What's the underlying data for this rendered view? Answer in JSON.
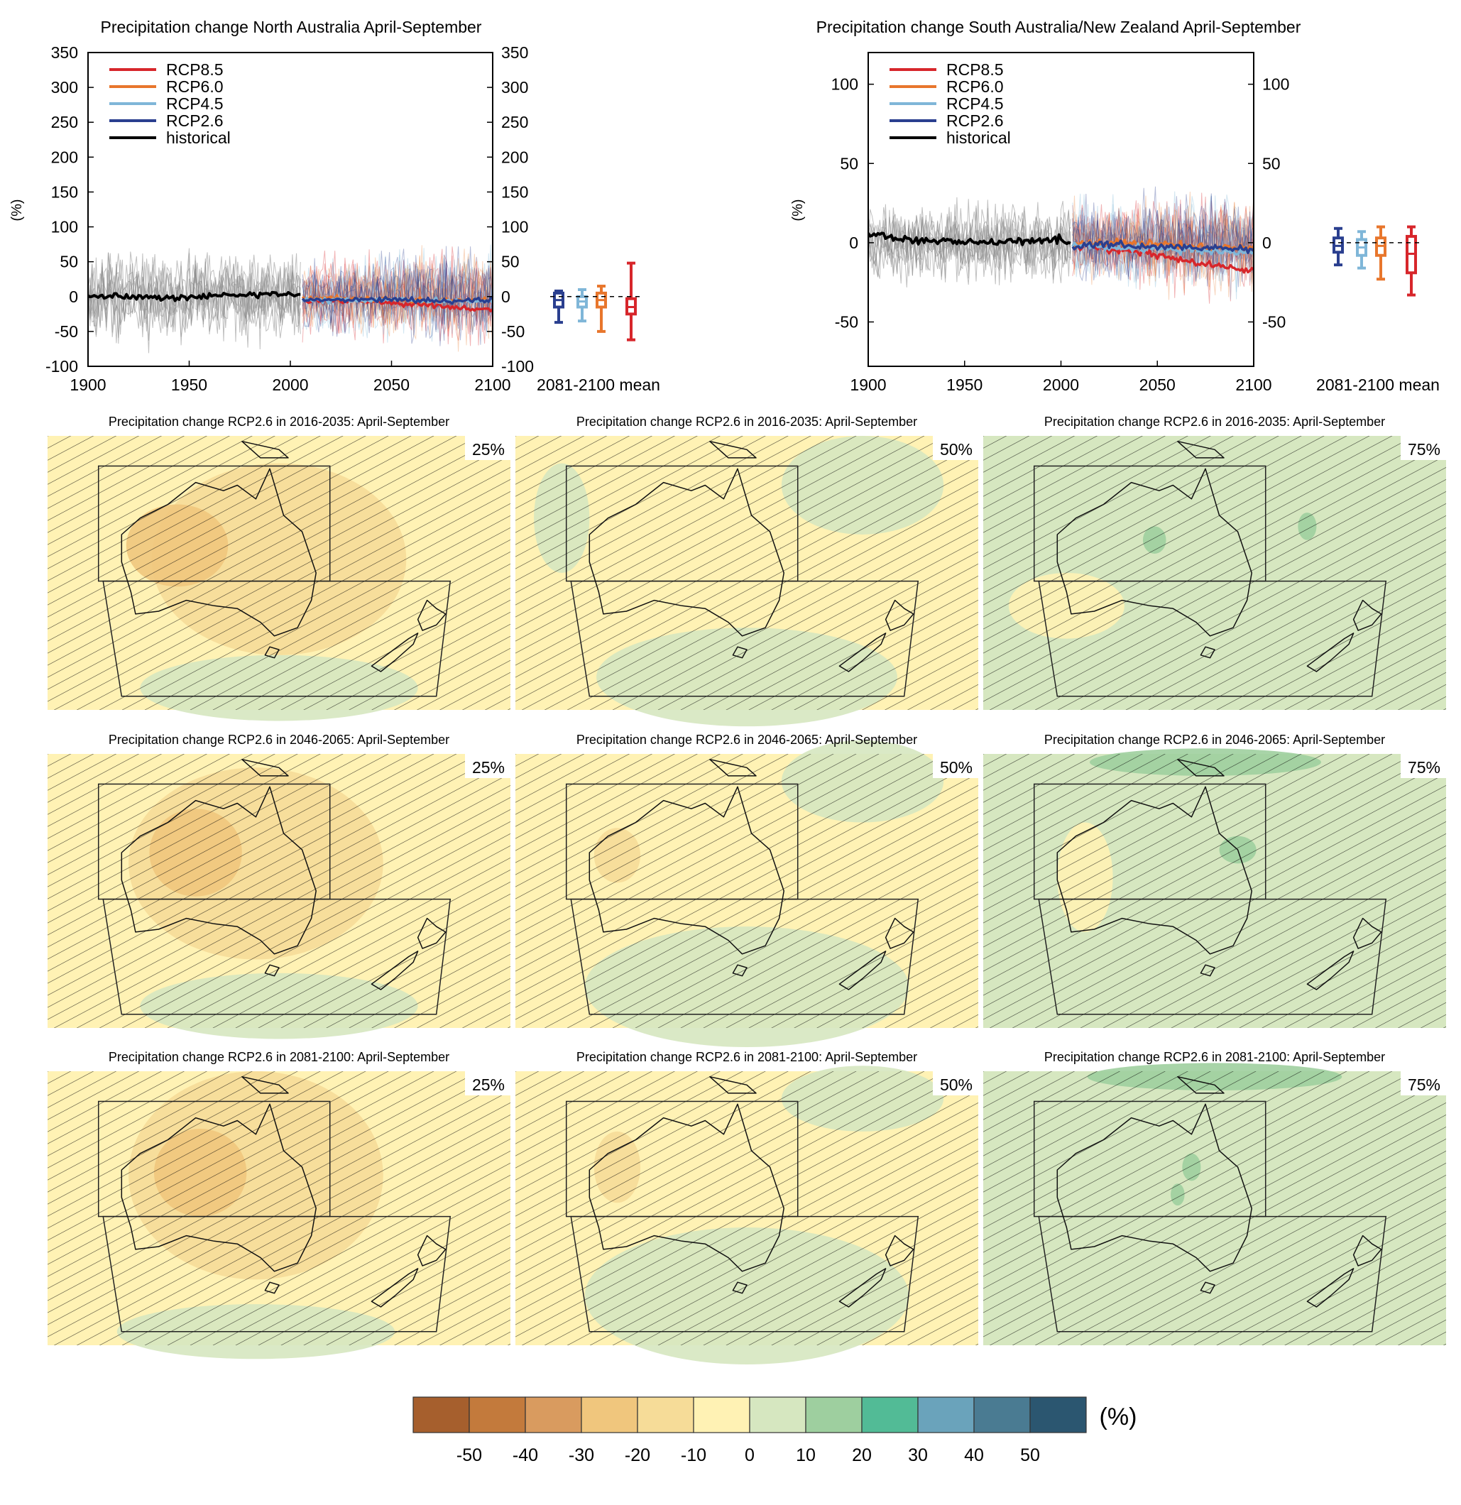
{
  "colors": {
    "rcp85": "#d7262b",
    "rcp60": "#e8762c",
    "rcp45": "#7fb6d8",
    "rcp26": "#2a3f8f",
    "historical": "#000000",
    "historical_spread": "#8c8c8c",
    "colorbar": [
      "#a65f2d",
      "#c37a3c",
      "#d99b5f",
      "#f0c67d",
      "#f6dc98",
      "#fff2b4",
      "#d6e7c0",
      "#9ecf9f",
      "#52bb96",
      "#6aa3bb",
      "#4a7b92",
      "#2b5670"
    ]
  },
  "chart_data": [
    {
      "type": "line",
      "title": "Precipitation change North Australia April-September",
      "ylabel": "(%)",
      "xlim": [
        1900,
        2100
      ],
      "ylim": [
        -100,
        350
      ],
      "x_ticks": [
        1900,
        1950,
        2000,
        2050,
        2100
      ],
      "y_ticks": [
        -100,
        -50,
        0,
        50,
        100,
        150,
        200,
        250,
        300,
        350
      ],
      "legend": {
        "placement": "top-left",
        "entries": [
          "RCP8.5",
          "RCP6.0",
          "RCP4.5",
          "RCP2.6",
          "historical"
        ]
      },
      "series": [
        {
          "name": "historical",
          "x": [
            1900,
            1920,
            1940,
            1960,
            1980,
            2000,
            2005
          ],
          "values": [
            2,
            0,
            -2,
            1,
            3,
            4,
            0
          ]
        },
        {
          "name": "RCP2.6",
          "x": [
            2006,
            2030,
            2050,
            2070,
            2100
          ],
          "values": [
            -5,
            -5,
            -3,
            -6,
            -5
          ]
        },
        {
          "name": "RCP4.5",
          "x": [
            2006,
            2030,
            2050,
            2070,
            2100
          ],
          "values": [
            -4,
            -5,
            -4,
            -7,
            -6
          ]
        },
        {
          "name": "RCP6.0",
          "x": [
            2006,
            2030,
            2050,
            2070,
            2100
          ],
          "values": [
            -3,
            -2,
            -4,
            -6,
            -5
          ]
        },
        {
          "name": "RCP8.5",
          "x": [
            2006,
            2030,
            2050,
            2070,
            2100
          ],
          "values": [
            -5,
            -6,
            -9,
            -14,
            -18
          ]
        }
      ],
      "box_label": "2081-2100 mean",
      "boxes": [
        {
          "series": "RCP2.6",
          "whisker_low": -37,
          "q1": -15,
          "median": -5,
          "q3": 5,
          "whisker_high": 8
        },
        {
          "series": "RCP4.5",
          "whisker_low": -35,
          "q1": -15,
          "median": -7,
          "q3": 0,
          "whisker_high": 10
        },
        {
          "series": "RCP6.0",
          "whisker_low": -50,
          "q1": -15,
          "median": -5,
          "q3": 5,
          "whisker_high": 15
        },
        {
          "series": "RCP8.5",
          "whisker_low": -62,
          "q1": -25,
          "median": -15,
          "q3": -3,
          "whisker_high": 48
        }
      ]
    },
    {
      "type": "line",
      "title": "Precipitation change South Australia/New Zealand April-September",
      "ylabel": "(%)",
      "xlim": [
        1900,
        2100
      ],
      "ylim": [
        -78,
        120
      ],
      "x_ticks": [
        1900,
        1950,
        2000,
        2050,
        2100
      ],
      "y_ticks": [
        -50,
        0,
        50,
        100
      ],
      "legend": {
        "placement": "top-left",
        "entries": [
          "RCP8.5",
          "RCP6.0",
          "RCP4.5",
          "RCP2.6",
          "historical"
        ]
      },
      "series": [
        {
          "name": "historical",
          "x": [
            1900,
            1920,
            1940,
            1960,
            1980,
            2000,
            2005
          ],
          "values": [
            5,
            2,
            1,
            0,
            1,
            3,
            0
          ]
        },
        {
          "name": "RCP2.6",
          "x": [
            2006,
            2030,
            2050,
            2070,
            2100
          ],
          "values": [
            -2,
            -1,
            -3,
            -3,
            -4
          ]
        },
        {
          "name": "RCP4.5",
          "x": [
            2006,
            2030,
            2050,
            2070,
            2100
          ],
          "values": [
            -2,
            -3,
            -4,
            -5,
            -6
          ]
        },
        {
          "name": "RCP6.0",
          "x": [
            2006,
            2030,
            2050,
            2070,
            2100
          ],
          "values": [
            -1,
            0,
            -1,
            -2,
            -3
          ]
        },
        {
          "name": "RCP8.5",
          "x": [
            2006,
            2030,
            2050,
            2070,
            2100
          ],
          "values": [
            -2,
            -4,
            -8,
            -13,
            -18
          ]
        }
      ],
      "box_label": "2081-2100 mean",
      "boxes": [
        {
          "series": "RCP2.6",
          "whisker_low": -14,
          "q1": -6,
          "median": -2,
          "q3": 3,
          "whisker_high": 9
        },
        {
          "series": "RCP4.5",
          "whisker_low": -16,
          "q1": -8,
          "median": -3,
          "q3": 2,
          "whisker_high": 7
        },
        {
          "series": "RCP6.0",
          "whisker_low": -23,
          "q1": -8,
          "median": -2,
          "q3": 3,
          "whisker_high": 10
        },
        {
          "series": "RCP8.5",
          "whisker_low": -33,
          "q1": -19,
          "median": -7,
          "q3": 4,
          "whisker_high": 10
        }
      ]
    },
    {
      "type": "heatmap",
      "grid": [
        {
          "title": "Precipitation change RCP2.6 in 2016-2035: April-September",
          "percentile": "25%"
        },
        {
          "title": "Precipitation change RCP2.6 in 2016-2035: April-September",
          "percentile": "50%"
        },
        {
          "title": "Precipitation change RCP2.6 in 2016-2035: April-September",
          "percentile": "75%"
        },
        {
          "title": "Precipitation change RCP2.6 in 2046-2065: April-September",
          "percentile": "25%"
        },
        {
          "title": "Precipitation change RCP2.6 in 2046-2065: April-September",
          "percentile": "50%"
        },
        {
          "title": "Precipitation change RCP2.6 in 2046-2065: April-September",
          "percentile": "75%"
        },
        {
          "title": "Precipitation change RCP2.6 in 2081-2100: April-September",
          "percentile": "25%"
        },
        {
          "title": "Precipitation change RCP2.6 in 2081-2100: April-September",
          "percentile": "50%"
        },
        {
          "title": "Precipitation change RCP2.6 in 2081-2100: April-September",
          "percentile": "75%"
        }
      ],
      "colorbar": {
        "unit": "(%)",
        "tick_labels": [
          "-50",
          "-40",
          "-30",
          "-20",
          "-10",
          "0",
          "10",
          "20",
          "30",
          "40",
          "50"
        ]
      }
    }
  ]
}
